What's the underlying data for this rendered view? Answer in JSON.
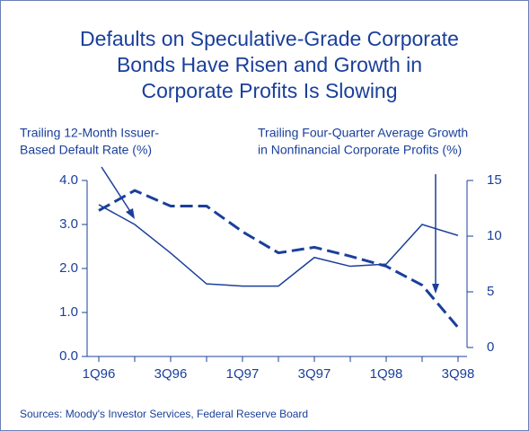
{
  "chart_data": {
    "type": "line",
    "title": [
      "Defaults on Speculative-Grade Corporate",
      "Bonds Have Risen and Growth in",
      "Corporate Profits Is Slowing"
    ],
    "annotations": [
      [
        "Trailing 12-Month Issuer-",
        "Based Default Rate (%)"
      ],
      [
        "Trailing Four-Quarter Average Growth",
        "in Nonfinancial Corporate Profits  (%)"
      ]
    ],
    "source": "Sources: Moody's Investor Services, Federal Reserve Board",
    "categories": [
      "1Q96",
      null,
      "3Q96",
      null,
      "1Q97",
      null,
      "3Q97",
      null,
      "1Q98",
      null,
      "3Q98"
    ],
    "series": [
      {
        "name": "Default rate",
        "color": "#1a3f9b",
        "line_style": "solid",
        "axis": "y",
        "values": [
          3.45,
          3.0,
          2.35,
          1.65,
          1.6,
          1.6,
          2.25,
          2.05,
          2.1,
          3.0,
          2.75
        ]
      },
      {
        "name": "Profit growth",
        "color": "#1a3f9b",
        "line_style": "dashed",
        "axis": "y2",
        "values": [
          12.3,
          14.1,
          12.7,
          12.7,
          10.4,
          8.5,
          9.0,
          8.2,
          7.3,
          5.6,
          1.8
        ]
      }
    ],
    "ylim": [
      0,
      4
    ],
    "yticks": [
      {
        "value": 0,
        "label": "0.0"
      },
      {
        "value": 1,
        "label": "1.0"
      },
      {
        "value": 2,
        "label": "2.0"
      },
      {
        "value": 3,
        "label": "3.0"
      },
      {
        "value": 4,
        "label": "4.0"
      }
    ],
    "y2lim": [
      0,
      15
    ],
    "y2ticks": [
      0,
      5,
      10,
      15
    ]
  }
}
